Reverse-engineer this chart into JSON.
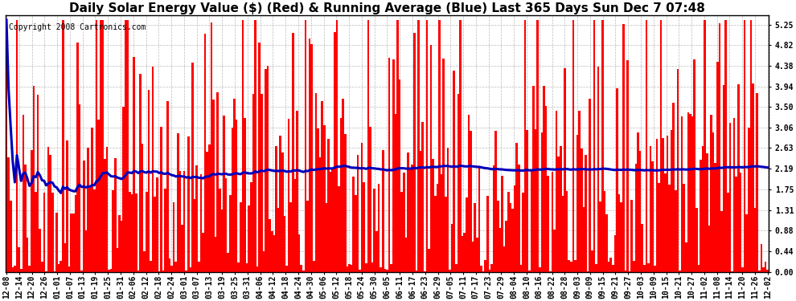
{
  "title": "Daily Solar Energy Value ($) (Red) & Running Average (Blue) Last 365 Days Sun Dec 7 07:48",
  "copyright": "Copyright 2008 Cartronics.com",
  "bar_color": "#ff0000",
  "avg_color": "#0000bb",
  "bg_color": "#ffffff",
  "plot_bg_color": "#ffffff",
  "grid_color": "#bbbbbb",
  "yticks": [
    0.0,
    0.44,
    0.88,
    1.31,
    1.75,
    2.19,
    2.63,
    3.06,
    3.5,
    3.94,
    4.38,
    4.82,
    5.25
  ],
  "ylim": [
    0.0,
    5.45
  ],
  "x_labels": [
    "12-08",
    "12-14",
    "12-20",
    "12-26",
    "01-01",
    "01-07",
    "01-13",
    "01-19",
    "01-25",
    "01-31",
    "02-06",
    "02-12",
    "02-18",
    "02-24",
    "03-01",
    "03-07",
    "03-13",
    "03-19",
    "03-25",
    "03-31",
    "04-06",
    "04-12",
    "04-18",
    "04-24",
    "04-30",
    "05-06",
    "05-12",
    "05-18",
    "05-24",
    "05-30",
    "06-05",
    "06-11",
    "06-17",
    "06-23",
    "06-29",
    "07-05",
    "07-11",
    "07-17",
    "07-23",
    "07-29",
    "08-04",
    "08-10",
    "08-16",
    "08-22",
    "08-28",
    "09-03",
    "09-09",
    "09-15",
    "09-21",
    "09-27",
    "10-03",
    "10-09",
    "10-15",
    "10-21",
    "10-27",
    "11-02",
    "11-08",
    "11-14",
    "11-20",
    "11-26",
    "12-02"
  ],
  "title_fontsize": 11,
  "tick_fontsize": 7,
  "copyright_fontsize": 7,
  "avg_linewidth": 2.2
}
